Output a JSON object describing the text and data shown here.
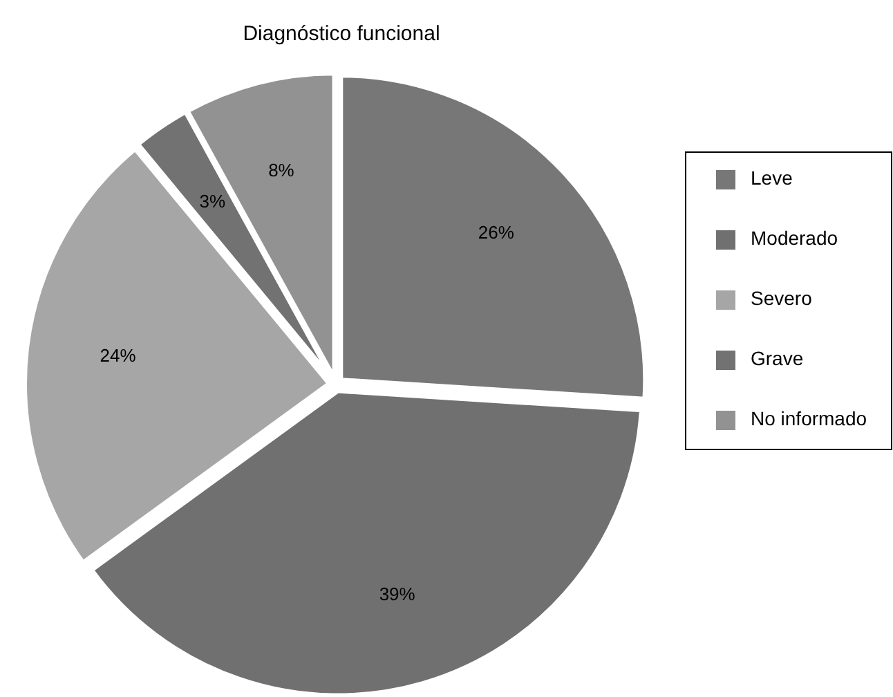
{
  "chart_data": {
    "type": "pie",
    "title": "Diagnóstico funcional",
    "categories": [
      "Leve",
      "Moderado",
      "Severo",
      "Grave",
      "No informado"
    ],
    "values": [
      26,
      39,
      24,
      3,
      8
    ],
    "colors": [
      "#777777",
      "#707070",
      "#a6a6a6",
      "#727272",
      "#929292"
    ],
    "value_labels": [
      "26%",
      "39%",
      "24%",
      "3%",
      "8%"
    ],
    "legend": "right"
  }
}
